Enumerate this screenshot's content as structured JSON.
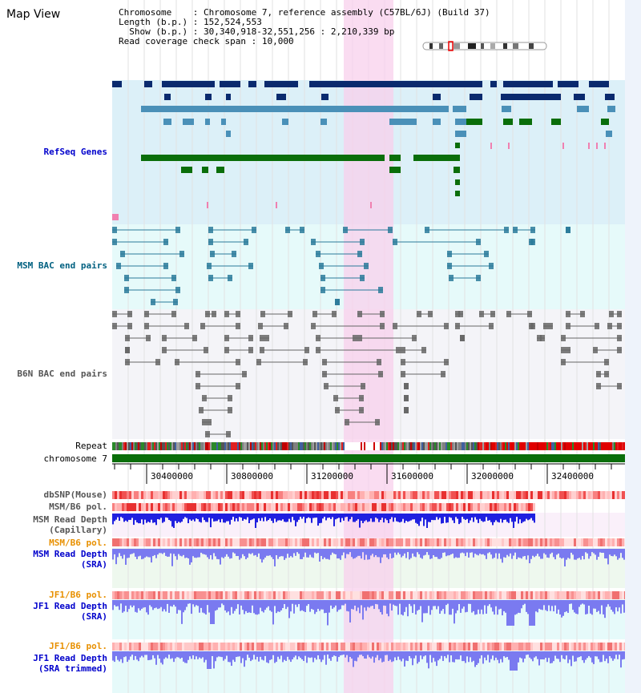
{
  "title": "Map View",
  "header": {
    "chromosome_key": "Chromosome",
    "chromosome_value": "Chromosome 7, reference assembly (C57BL/6J) (Build 37)",
    "length_key": "Length (b.p.)",
    "length_value": "152,524,553",
    "show_key": "Show (b.p.)",
    "show_value": "30,340,918-32,551,256 : 2,210,339 bp",
    "coverage_key": "Read coverage check span",
    "coverage_value": "10,000"
  },
  "tracks": {
    "refseq": "RefSeq Genes",
    "msm_bac": "MSM BAC end pairs",
    "b6n_bac": "B6N BAC end pairs",
    "repeat": "Repeat",
    "chromosome": "chromosome 7",
    "dbsnp": "dbSNP(Mouse)",
    "msm_b6_pol_1": "MSM/B6 pol.",
    "msm_read_depth_cap_1": "MSM Read Depth",
    "msm_read_depth_cap_2": "(Capillary)",
    "msm_b6_pol_2": "MSM/B6 pol.",
    "msm_read_depth_sra_1": "MSM Read Depth",
    "msm_read_depth_sra_2": "(SRA)",
    "jf1_b6_pol_1": "JF1/B6 pol.",
    "jf1_read_depth_sra_1": "JF1 Read Depth",
    "jf1_read_depth_sra_2": "(SRA)",
    "jf1_b6_pol_2": "JF1/B6 pol.",
    "jf1_read_depth_trim_1": "JF1 Read Depth",
    "jf1_read_depth_trim_2": "(SRA trimmed)"
  },
  "axis": {
    "ticks": [
      "30400000",
      "30800000",
      "31200000",
      "31600000",
      "32000000",
      "32400000"
    ]
  },
  "colors": {
    "refseq_bg": "#dcf0f8",
    "msm_bg": "#e6fafa",
    "b6n_bg": "#f4f4f8",
    "highlight": "#f8d0ec",
    "refseq_dark": "#0a2a6e",
    "refseq_mid": "#4a90b8",
    "refseq_green": "#0a6e0a",
    "msm_pair": "#2a7a9a",
    "b6n_pair": "#666666",
    "depth_cap": "#2020e0",
    "depth_sra": "#7a7af0",
    "label_blue": "#0000cc",
    "label_orange": "#e89000",
    "label_teal": "#006080",
    "label_gray": "#555555"
  }
}
